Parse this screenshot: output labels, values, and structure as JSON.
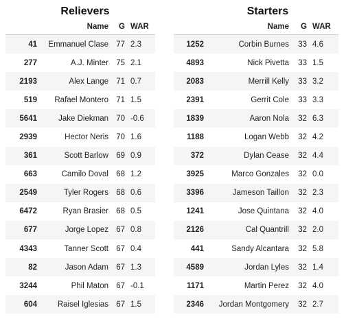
{
  "relievers": {
    "title": "Relievers",
    "columns": {
      "name": "Name",
      "g": "G",
      "war": "WAR"
    },
    "rows": [
      {
        "idx": "41",
        "name": "Emmanuel Clase",
        "g": "77",
        "war": "2.3"
      },
      {
        "idx": "277",
        "name": "A.J. Minter",
        "g": "75",
        "war": "2.1"
      },
      {
        "idx": "2193",
        "name": "Alex Lange",
        "g": "71",
        "war": "0.7"
      },
      {
        "idx": "519",
        "name": "Rafael Montero",
        "g": "71",
        "war": "1.5"
      },
      {
        "idx": "5641",
        "name": "Jake Diekman",
        "g": "70",
        "war": "-0.6"
      },
      {
        "idx": "2939",
        "name": "Hector Neris",
        "g": "70",
        "war": "1.6"
      },
      {
        "idx": "361",
        "name": "Scott Barlow",
        "g": "69",
        "war": "0.9"
      },
      {
        "idx": "663",
        "name": "Camilo Doval",
        "g": "68",
        "war": "1.2"
      },
      {
        "idx": "2549",
        "name": "Tyler Rogers",
        "g": "68",
        "war": "0.6"
      },
      {
        "idx": "6472",
        "name": "Ryan Brasier",
        "g": "68",
        "war": "0.5"
      },
      {
        "idx": "677",
        "name": "Jorge Lopez",
        "g": "67",
        "war": "0.8"
      },
      {
        "idx": "4343",
        "name": "Tanner Scott",
        "g": "67",
        "war": "0.4"
      },
      {
        "idx": "82",
        "name": "Jason Adam",
        "g": "67",
        "war": "1.3"
      },
      {
        "idx": "3244",
        "name": "Phil Maton",
        "g": "67",
        "war": "-0.1"
      },
      {
        "idx": "604",
        "name": "Raisel Iglesias",
        "g": "67",
        "war": "1.5"
      }
    ]
  },
  "starters": {
    "title": "Starters",
    "columns": {
      "name": "Name",
      "g": "G",
      "war": "WAR"
    },
    "rows": [
      {
        "idx": "1252",
        "name": "Corbin Burnes",
        "g": "33",
        "war": "4.6"
      },
      {
        "idx": "4893",
        "name": "Nick Pivetta",
        "g": "33",
        "war": "1.5"
      },
      {
        "idx": "2083",
        "name": "Merrill Kelly",
        "g": "33",
        "war": "3.2"
      },
      {
        "idx": "2391",
        "name": "Gerrit Cole",
        "g": "33",
        "war": "3.3"
      },
      {
        "idx": "1839",
        "name": "Aaron Nola",
        "g": "32",
        "war": "6.3"
      },
      {
        "idx": "1188",
        "name": "Logan Webb",
        "g": "32",
        "war": "4.2"
      },
      {
        "idx": "372",
        "name": "Dylan Cease",
        "g": "32",
        "war": "4.4"
      },
      {
        "idx": "3925",
        "name": "Marco Gonzales",
        "g": "32",
        "war": "0.0"
      },
      {
        "idx": "3396",
        "name": "Jameson Taillon",
        "g": "32",
        "war": "2.3"
      },
      {
        "idx": "1241",
        "name": "Jose Quintana",
        "g": "32",
        "war": "4.0"
      },
      {
        "idx": "2126",
        "name": "Cal Quantrill",
        "g": "32",
        "war": "2.0"
      },
      {
        "idx": "441",
        "name": "Sandy Alcantara",
        "g": "32",
        "war": "5.8"
      },
      {
        "idx": "4589",
        "name": "Jordan Lyles",
        "g": "32",
        "war": "1.4"
      },
      {
        "idx": "1171",
        "name": "Martin Perez",
        "g": "32",
        "war": "4.0"
      },
      {
        "idx": "2346",
        "name": "Jordan Montgomery",
        "g": "32",
        "war": "2.7"
      }
    ]
  }
}
